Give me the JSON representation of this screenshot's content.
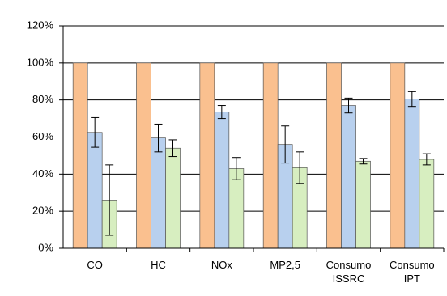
{
  "chart_data": {
    "type": "bar",
    "categories": [
      "CO",
      "HC",
      "NOx",
      "MP2,5",
      "Consumo ISSRC",
      "Consumo IPT"
    ],
    "series": [
      {
        "color": "#fac08f",
        "values": [
          100,
          100,
          100,
          100,
          100,
          100
        ]
      },
      {
        "color": "#b8d0ee",
        "values": [
          62.5,
          59.5,
          73.5,
          56,
          77,
          80.5
        ],
        "errors": [
          8,
          7.5,
          3.5,
          10,
          4,
          4
        ]
      },
      {
        "color": "#d7eec0",
        "values": [
          26,
          54,
          43,
          43.5,
          47,
          48
        ],
        "errors": [
          19,
          4.5,
          6,
          8.5,
          1.5,
          3
        ]
      }
    ],
    "ylim": [
      0,
      120
    ],
    "yticks": [
      {
        "value": 0,
        "label": "0%"
      },
      {
        "value": 20,
        "label": "20%"
      },
      {
        "value": 40,
        "label": "40%"
      },
      {
        "value": 60,
        "label": "60%"
      },
      {
        "value": 80,
        "label": "80%"
      },
      {
        "value": 100,
        "label": "100%"
      },
      {
        "value": 120,
        "label": "120%"
      }
    ],
    "grid": true
  }
}
